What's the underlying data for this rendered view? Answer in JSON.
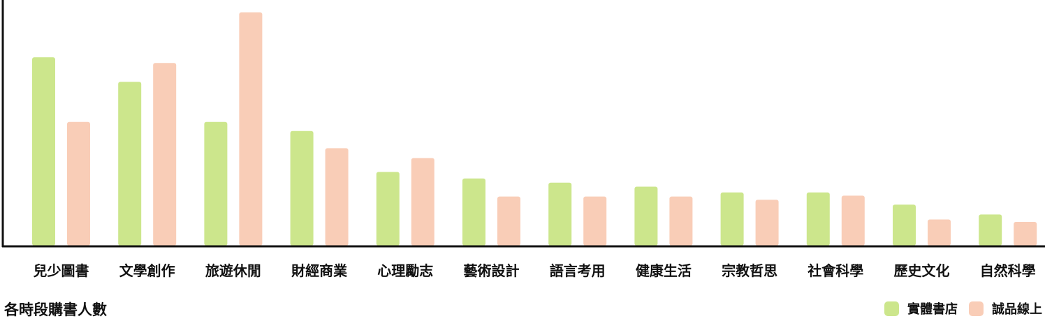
{
  "chart_data": {
    "type": "bar",
    "title": "各時段購書人數",
    "categories": [
      "兒少圖書",
      "文學創作",
      "旅遊休閒",
      "財經商業",
      "心理勵志",
      "藝術設計",
      "語言考用",
      "健康生活",
      "宗教哲思",
      "社會科學",
      "歷史文化",
      "自然科學"
    ],
    "series": [
      {
        "name": "實體書店",
        "color": "#cce68c",
        "values": [
          230,
          200,
          151,
          140,
          90,
          82,
          77,
          72,
          65,
          65,
          50,
          38
        ]
      },
      {
        "name": "誠品線上",
        "color": "#f9cdb7",
        "values": [
          151,
          223,
          285,
          119,
          107,
          60,
          60,
          60,
          56,
          61,
          32,
          29
        ]
      }
    ],
    "ylim": [
      0,
      300
    ],
    "grid": false,
    "legend_position": "bottom-right"
  }
}
